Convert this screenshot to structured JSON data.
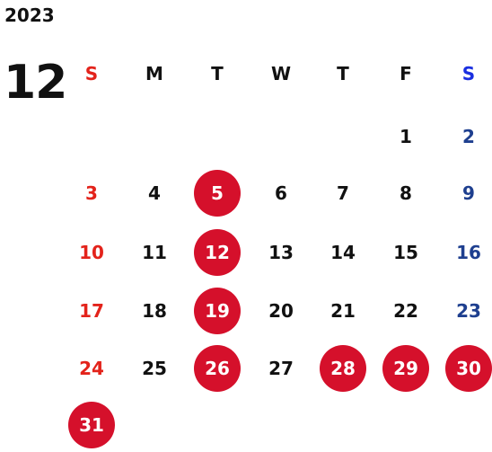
{
  "year": "2023",
  "month": "12",
  "weekdays": [
    "S",
    "M",
    "T",
    "W",
    "T",
    "F",
    "S"
  ],
  "weeks": [
    [
      "",
      "",
      "",
      "",
      "",
      "1",
      "2"
    ],
    [
      "3",
      "4",
      "5",
      "6",
      "7",
      "8",
      "9"
    ],
    [
      "10",
      "11",
      "12",
      "13",
      "14",
      "15",
      "16"
    ],
    [
      "17",
      "18",
      "19",
      "20",
      "21",
      "22",
      "23"
    ],
    [
      "24",
      "25",
      "26",
      "27",
      "28",
      "29",
      "30"
    ],
    [
      "31",
      "",
      "",
      "",
      "",
      "",
      ""
    ]
  ],
  "highlighted_days": [
    "5",
    "12",
    "19",
    "26",
    "28",
    "29",
    "30",
    "31"
  ],
  "colors": {
    "sunday": "#e3231b",
    "saturday": "#1e3f8f",
    "highlight": "#d5102b"
  }
}
